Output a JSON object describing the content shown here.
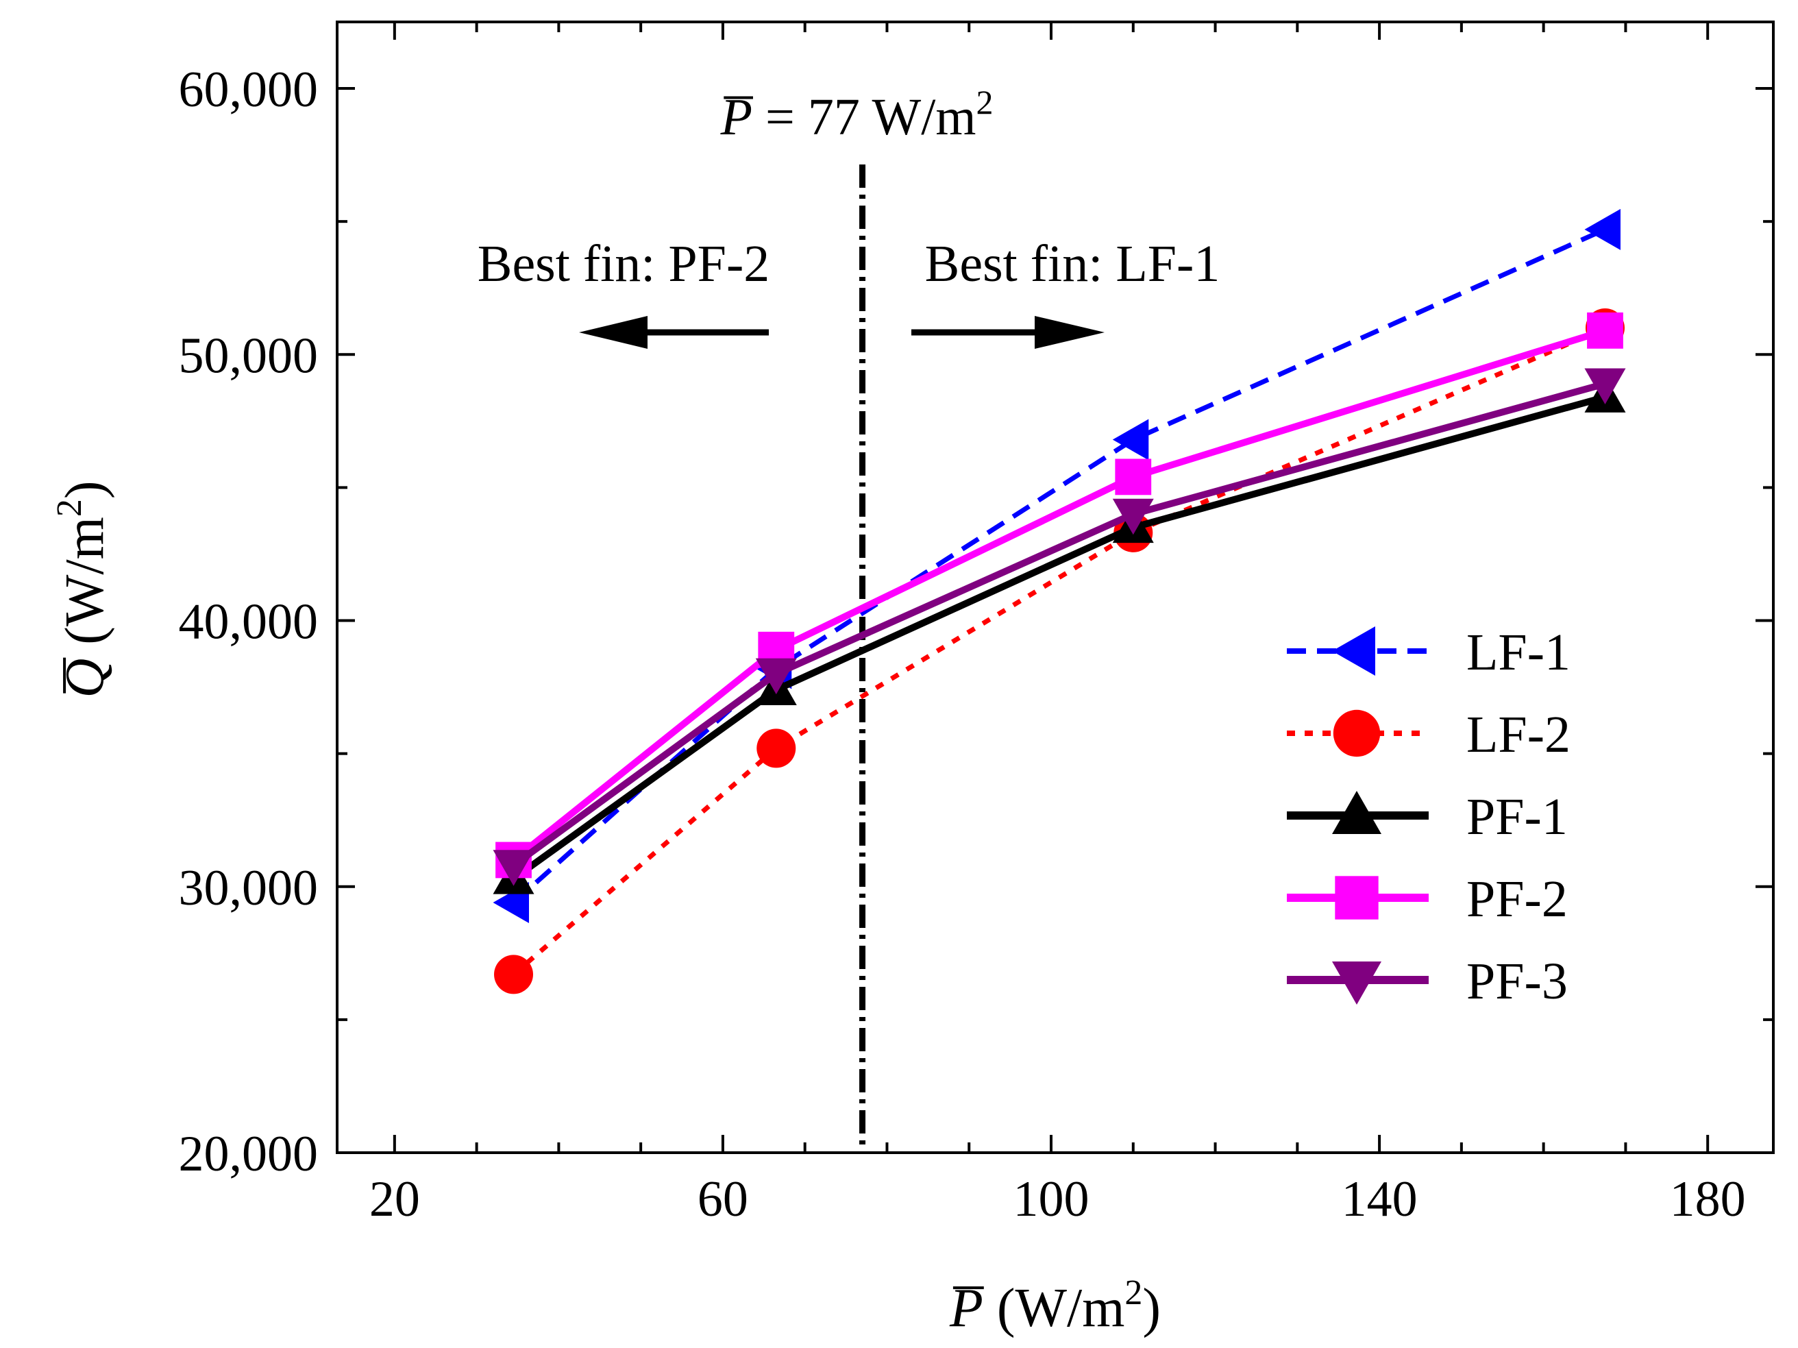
{
  "chart_data": {
    "type": "line",
    "title": "",
    "xlabel": {
      "symbol": "P",
      "unit_open": " (W/m",
      "unit_sup": "2",
      "unit_close": ")"
    },
    "ylabel": {
      "symbol": "Q",
      "unit_open": " (W/m",
      "unit_sup": "2",
      "unit_close": ")"
    },
    "xlim": [
      13,
      188
    ],
    "ylim": [
      20000,
      62500
    ],
    "x_ticks": [
      20,
      60,
      100,
      140,
      180
    ],
    "x_tick_labels": [
      "20",
      "60",
      "100",
      "140",
      "180"
    ],
    "x_minor_step": 10,
    "y_ticks": [
      20000,
      30000,
      40000,
      50000,
      60000
    ],
    "y_tick_labels": [
      "20,000",
      "30,000",
      "40,000",
      "50,000",
      "60,000"
    ],
    "y_minor_step": 5000,
    "grid": false,
    "legend_position": "lower-right",
    "x": [
      34.5,
      66.5,
      110,
      167.5
    ],
    "series": [
      {
        "name": "LF-1",
        "values": [
          29400,
          38200,
          46800,
          54700
        ],
        "color": "#0000ff",
        "dash": "dash",
        "marker": "triangle-left"
      },
      {
        "name": "LF-2",
        "values": [
          26700,
          35200,
          43300,
          51000
        ],
        "color": "#ff0000",
        "dash": "dot",
        "marker": "circle"
      },
      {
        "name": "PF-1",
        "values": [
          30300,
          37400,
          43500,
          48400
        ],
        "color": "#000000",
        "dash": "solid",
        "marker": "triangle-up"
      },
      {
        "name": "PF-2",
        "values": [
          31000,
          38900,
          45400,
          50900
        ],
        "color": "#ff00ff",
        "dash": "solid",
        "marker": "square"
      },
      {
        "name": "PF-3",
        "values": [
          30800,
          38000,
          44000,
          48900
        ],
        "color": "#800080",
        "dash": "solid",
        "marker": "triangle-down"
      }
    ],
    "annotations": {
      "vline_x": 77,
      "vline_label": {
        "symbol": "P",
        "text": " = 77 W/m",
        "sup": "2"
      },
      "left_region_label": "Best fin: PF-2",
      "right_region_label": "Best fin: LF-1"
    }
  }
}
